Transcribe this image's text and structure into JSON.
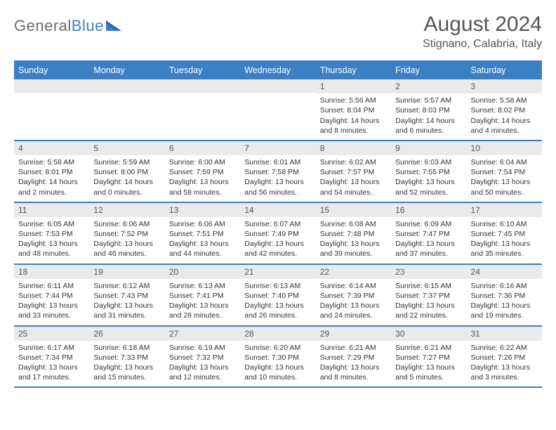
{
  "brand": {
    "text1": "General",
    "text2": "Blue"
  },
  "title": "August 2024",
  "location": "Stignano, Calabria, Italy",
  "colors": {
    "accent": "#3b7fc4",
    "headerText": "#ffffff",
    "bodyText": "#333333",
    "muted": "#6b6b6b",
    "dayBar": "#eaeaea",
    "background": "#ffffff"
  },
  "dow": [
    "Sunday",
    "Monday",
    "Tuesday",
    "Wednesday",
    "Thursday",
    "Friday",
    "Saturday"
  ],
  "weeks": [
    [
      null,
      null,
      null,
      null,
      {
        "n": "1",
        "sunrise": "5:56 AM",
        "sunset": "8:04 PM",
        "dh": "14",
        "dm": "8"
      },
      {
        "n": "2",
        "sunrise": "5:57 AM",
        "sunset": "8:03 PM",
        "dh": "14",
        "dm": "6"
      },
      {
        "n": "3",
        "sunrise": "5:58 AM",
        "sunset": "8:02 PM",
        "dh": "14",
        "dm": "4"
      }
    ],
    [
      {
        "n": "4",
        "sunrise": "5:58 AM",
        "sunset": "8:01 PM",
        "dh": "14",
        "dm": "2"
      },
      {
        "n": "5",
        "sunrise": "5:59 AM",
        "sunset": "8:00 PM",
        "dh": "14",
        "dm": "0"
      },
      {
        "n": "6",
        "sunrise": "6:00 AM",
        "sunset": "7:59 PM",
        "dh": "13",
        "dm": "58"
      },
      {
        "n": "7",
        "sunrise": "6:01 AM",
        "sunset": "7:58 PM",
        "dh": "13",
        "dm": "56"
      },
      {
        "n": "8",
        "sunrise": "6:02 AM",
        "sunset": "7:57 PM",
        "dh": "13",
        "dm": "54"
      },
      {
        "n": "9",
        "sunrise": "6:03 AM",
        "sunset": "7:55 PM",
        "dh": "13",
        "dm": "52"
      },
      {
        "n": "10",
        "sunrise": "6:04 AM",
        "sunset": "7:54 PM",
        "dh": "13",
        "dm": "50"
      }
    ],
    [
      {
        "n": "11",
        "sunrise": "6:05 AM",
        "sunset": "7:53 PM",
        "dh": "13",
        "dm": "48"
      },
      {
        "n": "12",
        "sunrise": "6:06 AM",
        "sunset": "7:52 PM",
        "dh": "13",
        "dm": "46"
      },
      {
        "n": "13",
        "sunrise": "6:06 AM",
        "sunset": "7:51 PM",
        "dh": "13",
        "dm": "44"
      },
      {
        "n": "14",
        "sunrise": "6:07 AM",
        "sunset": "7:49 PM",
        "dh": "13",
        "dm": "42"
      },
      {
        "n": "15",
        "sunrise": "6:08 AM",
        "sunset": "7:48 PM",
        "dh": "13",
        "dm": "39"
      },
      {
        "n": "16",
        "sunrise": "6:09 AM",
        "sunset": "7:47 PM",
        "dh": "13",
        "dm": "37"
      },
      {
        "n": "17",
        "sunrise": "6:10 AM",
        "sunset": "7:45 PM",
        "dh": "13",
        "dm": "35"
      }
    ],
    [
      {
        "n": "18",
        "sunrise": "6:11 AM",
        "sunset": "7:44 PM",
        "dh": "13",
        "dm": "33"
      },
      {
        "n": "19",
        "sunrise": "6:12 AM",
        "sunset": "7:43 PM",
        "dh": "13",
        "dm": "31"
      },
      {
        "n": "20",
        "sunrise": "6:13 AM",
        "sunset": "7:41 PM",
        "dh": "13",
        "dm": "28"
      },
      {
        "n": "21",
        "sunrise": "6:13 AM",
        "sunset": "7:40 PM",
        "dh": "13",
        "dm": "26"
      },
      {
        "n": "22",
        "sunrise": "6:14 AM",
        "sunset": "7:39 PM",
        "dh": "13",
        "dm": "24"
      },
      {
        "n": "23",
        "sunrise": "6:15 AM",
        "sunset": "7:37 PM",
        "dh": "13",
        "dm": "22"
      },
      {
        "n": "24",
        "sunrise": "6:16 AM",
        "sunset": "7:36 PM",
        "dh": "13",
        "dm": "19"
      }
    ],
    [
      {
        "n": "25",
        "sunrise": "6:17 AM",
        "sunset": "7:34 PM",
        "dh": "13",
        "dm": "17"
      },
      {
        "n": "26",
        "sunrise": "6:18 AM",
        "sunset": "7:33 PM",
        "dh": "13",
        "dm": "15"
      },
      {
        "n": "27",
        "sunrise": "6:19 AM",
        "sunset": "7:32 PM",
        "dh": "13",
        "dm": "12"
      },
      {
        "n": "28",
        "sunrise": "6:20 AM",
        "sunset": "7:30 PM",
        "dh": "13",
        "dm": "10"
      },
      {
        "n": "29",
        "sunrise": "6:21 AM",
        "sunset": "7:29 PM",
        "dh": "13",
        "dm": "8"
      },
      {
        "n": "30",
        "sunrise": "6:21 AM",
        "sunset": "7:27 PM",
        "dh": "13",
        "dm": "5"
      },
      {
        "n": "31",
        "sunrise": "6:22 AM",
        "sunset": "7:26 PM",
        "dh": "13",
        "dm": "3"
      }
    ]
  ],
  "labels": {
    "sunrise": "Sunrise:",
    "sunset": "Sunset:",
    "daylight": "Daylight:",
    "hours": "hours",
    "and": "and",
    "minutes": "minutes."
  }
}
